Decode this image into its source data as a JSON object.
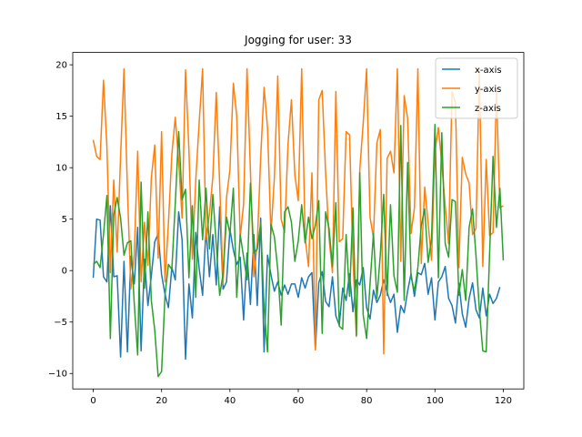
{
  "chart_data": {
    "type": "line",
    "title": "Jogging for user: 33",
    "xlabel": "",
    "ylabel": "",
    "xlim": [
      -6,
      126
    ],
    "ylim": [
      -11.5,
      21.2
    ],
    "xticks": [
      0,
      20,
      40,
      60,
      80,
      100,
      120
    ],
    "yticks": [
      -10,
      -5,
      0,
      5,
      10,
      15,
      20
    ],
    "grid": false,
    "legend_position": "top-right",
    "series": [
      {
        "name": "x-axis",
        "color": "#1f77b4",
        "values": [
          -0.7,
          5.0,
          4.9,
          -0.6,
          -1.1,
          6.3,
          -0.6,
          -0.5,
          -8.4,
          0.9,
          -7.9,
          1.4,
          -1.3,
          4.2,
          -7.8,
          1.1,
          -3.4,
          -0.5,
          2.8,
          3.6,
          -0.4,
          -2.3,
          -3.6,
          0.3,
          -0.9,
          5.7,
          3.0,
          -8.6,
          -1.3,
          -4.6,
          3.7,
          0.2,
          -2.4,
          4.1,
          -0.6,
          3.5,
          -1.4,
          6.2,
          -1.8,
          -1.1,
          4.0,
          2.0,
          0.6,
          1.3,
          -4.8,
          1.7,
          -3.3,
          3.5,
          -3.4,
          5.1,
          -7.9,
          1.5,
          -0.4,
          -2.0,
          -1.1,
          -2.4,
          -1.4,
          -2.3,
          -1.3,
          -1.3,
          -2.6,
          -0.7,
          -1.7,
          -0.6,
          -0.2,
          -7.7,
          -1.2,
          -0.1,
          -3.0,
          -3.5,
          -0.6,
          -4.4,
          -5.3,
          -1.7,
          -2.9,
          -0.3,
          -4.0,
          -0.9,
          -1.4,
          0.3,
          -3.6,
          -4.7,
          -1.9,
          -3.1,
          -2.4,
          -0.9,
          -2.1,
          -3.1,
          -2.3,
          -6.0,
          -3.4,
          -4.1,
          -2.0,
          -0.3,
          -2.5,
          -0.2,
          -0.4,
          0.7,
          -2.3,
          -0.7,
          -4.8,
          -1.1,
          -0.6,
          0.4,
          -2.7,
          -3.4,
          -5.1,
          -1.2,
          -4.2,
          -5.5,
          -2.7,
          -1.2,
          -3.8,
          -4.6,
          -1.7,
          -4.4,
          -2.3,
          -3.2,
          -2.7,
          -1.6
        ]
      },
      {
        "name": "y-axis",
        "color": "#ff7f0e",
        "values": [
          12.7,
          11.1,
          10.8,
          18.5,
          12.0,
          -0.2,
          8.8,
          1.8,
          11.1,
          19.6,
          7.9,
          -1.8,
          1.6,
          11.6,
          -1.1,
          4.7,
          0.5,
          9.0,
          12.2,
          1.2,
          13.5,
          -1.1,
          4.6,
          11.3,
          14.9,
          10.6,
          5.1,
          19.5,
          11.7,
          1.1,
          8.8,
          14.4,
          19.6,
          3.0,
          5.5,
          9.1,
          17.3,
          8.4,
          -1.3,
          7.1,
          9.8,
          18.2,
          15.0,
          3.2,
          6.5,
          19.6,
          9.7,
          -0.6,
          2.6,
          11.0,
          17.8,
          13.9,
          3.6,
          9.0,
          18.9,
          5.0,
          3.7,
          12.3,
          16.6,
          9.3,
          6.8,
          19.6,
          3.2,
          0.4,
          9.5,
          -7.7,
          16.6,
          17.5,
          9.5,
          3.2,
          -0.2,
          17.4,
          2.8,
          3.1,
          13.5,
          13.2,
          1.2,
          -6.4,
          9.8,
          14.3,
          19.6,
          5.2,
          3.2,
          12.4,
          13.7,
          -8.1,
          10.9,
          11.6,
          9.5,
          19.6,
          0.9,
          17.0,
          14.8,
          3.6,
          6.1,
          19.6,
          0.7,
          8.1,
          4.6,
          1.0,
          11.6,
          13.9,
          10.4,
          6.3,
          2.6,
          17.4,
          16.3,
          0.3,
          11.0,
          9.4,
          8.5,
          3.5,
          4.1,
          19.6,
          0.4,
          10.8,
          3.4,
          3.7,
          17.6,
          6.1,
          6.3
        ]
      },
      {
        "name": "z-axis",
        "color": "#2ca02c",
        "values": [
          0.6,
          0.9,
          0.3,
          3.5,
          7.3,
          -6.6,
          5.4,
          7.1,
          5.1,
          1.5,
          2.7,
          2.9,
          -3.2,
          -8.2,
          8.6,
          -1.7,
          5.7,
          -2.9,
          -5.8,
          -10.3,
          -9.8,
          -2.4,
          0.6,
          0.1,
          6.5,
          13.5,
          6.9,
          7.9,
          -0.7,
          6.3,
          -2.6,
          8.8,
          3.0,
          8.0,
          2.1,
          7.4,
          2.5,
          -2.4,
          -0.3,
          5.2,
          3.6,
          8.0,
          -2.6,
          3.5,
          1.3,
          -0.9,
          8.5,
          1.7,
          2.1,
          4.6,
          -3.6,
          -7.9,
          4.5,
          3.3,
          0.1,
          -5.3,
          5.7,
          6.2,
          4.7,
          0.9,
          2.9,
          6.4,
          2.7,
          5.2,
          3.1,
          4.4,
          6.8,
          -6.1,
          5.7,
          4.1,
          0.4,
          6.6,
          -5.4,
          -5.7,
          3.5,
          -2.5,
          6.1,
          -6.3,
          9.5,
          -4.3,
          -6.6,
          -1.3,
          3.6,
          -2.7,
          1.5,
          7.4,
          -2.4,
          6.4,
          -0.5,
          -2.1,
          14.1,
          -2.9,
          10.5,
          -0.6,
          -2.0,
          0.3,
          4.4,
          6.0,
          0.8,
          3.1,
          14.2,
          -0.7,
          13.4,
          2.6,
          1.3,
          6.9,
          6.7,
          -2.4,
          0.1,
          -2.9,
          4.2,
          6.0,
          1.5,
          -3.8,
          -7.8,
          -7.9,
          1.7,
          11.1,
          4.2,
          8.0,
          1.0
        ]
      }
    ]
  }
}
